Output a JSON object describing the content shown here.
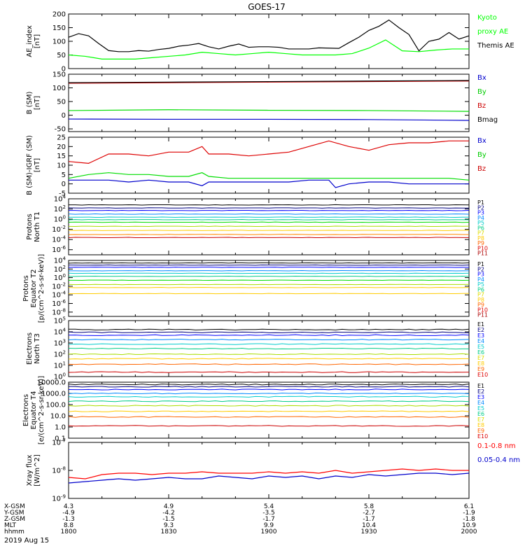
{
  "title": "GOES-17",
  "date": "2019 Aug 15",
  "chart_data": [
    {
      "type": "line",
      "ylabel": "AE_index [nT]",
      "ylim": [
        0,
        200
      ],
      "yticks": [
        "200",
        "150",
        "100",
        "50",
        "0"
      ],
      "series": [
        {
          "name": "Kyoto proxy AE",
          "color": "#00ff00",
          "x": [
            0,
            5,
            10,
            15,
            20,
            25,
            30,
            35,
            40,
            45,
            50,
            55,
            60,
            65,
            70,
            75,
            80,
            85,
            90,
            95,
            100,
            105,
            110,
            115,
            120
          ],
          "values": [
            50,
            45,
            35,
            35,
            35,
            40,
            45,
            50,
            60,
            55,
            50,
            55,
            60,
            55,
            50,
            50,
            50,
            55,
            75,
            105,
            65,
            62,
            68,
            72,
            72
          ]
        },
        {
          "name": "Themis AE",
          "color": "#000000",
          "x": [
            0,
            3,
            6,
            9,
            12,
            15,
            18,
            21,
            24,
            27,
            30,
            33,
            36,
            39,
            42,
            45,
            48,
            51,
            54,
            57,
            60,
            63,
            66,
            69,
            72,
            75,
            78,
            81,
            84,
            87,
            90,
            93,
            96,
            99,
            102,
            105,
            108,
            111,
            114,
            117,
            120
          ],
          "values": [
            115,
            128,
            120,
            92,
            66,
            62,
            62,
            66,
            64,
            70,
            74,
            82,
            86,
            92,
            80,
            72,
            82,
            90,
            78,
            80,
            80,
            78,
            72,
            72,
            72,
            76,
            75,
            74,
            95,
            115,
            140,
            155,
            178,
            150,
            125,
            65,
            100,
            108,
            132,
            108,
            120
          ]
        }
      ],
      "legend": [
        {
          "label": "Kyoto",
          "color": "#00ff00"
        },
        {
          "label": "proxy AE",
          "color": "#00ff00"
        },
        {
          "label": "Themis AE",
          "color": "#000000"
        }
      ]
    },
    {
      "type": "line",
      "ylabel": "B (SM) [nT]",
      "ylim": [
        -60,
        150
      ],
      "yticks": [
        "150",
        "100",
        "50",
        "0",
        "-50"
      ],
      "series": [
        {
          "name": "Bx",
          "color": "#0000cc",
          "x": [
            0,
            30,
            60,
            90,
            120
          ],
          "values": [
            -14,
            -15,
            -15,
            -16,
            -19
          ]
        },
        {
          "name": "By",
          "color": "#00dd00",
          "x": [
            0,
            30,
            60,
            90,
            120
          ],
          "values": [
            17,
            20,
            18,
            17,
            14
          ]
        },
        {
          "name": "Bz",
          "color": "#cc0000",
          "x": [
            0,
            30,
            60,
            90,
            120
          ],
          "values": [
            117,
            119,
            121,
            123,
            125
          ]
        },
        {
          "name": "Bmag",
          "color": "#000000",
          "x": [
            0,
            30,
            60,
            90,
            120
          ],
          "values": [
            119,
            121,
            123,
            125,
            127
          ]
        }
      ],
      "legend": [
        {
          "label": "Bx",
          "color": "#0000cc"
        },
        {
          "label": "By",
          "color": "#00cc00"
        },
        {
          "label": "Bz",
          "color": "#cc0000"
        },
        {
          "label": "Bmag",
          "color": "#000000"
        }
      ]
    },
    {
      "type": "line",
      "ylabel": "B (SM)-IGRF (SM) [nT]",
      "ylim": [
        -5,
        25
      ],
      "yticks": [
        "25",
        "20",
        "15",
        "10",
        "5",
        "0",
        "-5"
      ],
      "series": [
        {
          "name": "Bx",
          "color": "#0000cc",
          "x": [
            0,
            6,
            12,
            18,
            24,
            30,
            36,
            40,
            42,
            48,
            54,
            60,
            66,
            72,
            78,
            80,
            84,
            90,
            96,
            102,
            108,
            114,
            120
          ],
          "values": [
            2,
            2,
            2,
            1,
            2,
            1,
            1,
            -1,
            1,
            1,
            1,
            1,
            1,
            2,
            2,
            -2,
            0,
            1,
            1,
            0,
            0,
            0,
            0
          ]
        },
        {
          "name": "By",
          "color": "#00dd00",
          "x": [
            0,
            6,
            12,
            18,
            24,
            30,
            36,
            40,
            42,
            48,
            54,
            60,
            66,
            72,
            78,
            84,
            90,
            96,
            102,
            108,
            114,
            120
          ],
          "values": [
            3,
            5,
            6,
            5,
            5,
            4,
            4,
            6,
            4,
            3,
            3,
            3,
            3,
            3,
            3,
            3,
            3,
            3,
            3,
            3,
            3,
            2
          ]
        },
        {
          "name": "Bz",
          "color": "#dd0000",
          "x": [
            0,
            6,
            12,
            18,
            24,
            30,
            36,
            40,
            42,
            48,
            54,
            60,
            66,
            72,
            78,
            84,
            90,
            96,
            102,
            108,
            114,
            120
          ],
          "values": [
            12,
            11,
            16,
            16,
            15,
            17,
            17,
            20,
            16,
            16,
            15,
            16,
            17,
            20,
            23,
            20,
            18,
            21,
            22,
            22,
            23,
            23
          ]
        }
      ],
      "legend": [
        {
          "label": "Bx",
          "color": "#0000cc"
        },
        {
          "label": "By",
          "color": "#00cc00"
        },
        {
          "label": "Bz",
          "color": "#cc0000"
        }
      ]
    },
    {
      "type": "line",
      "ylabel": "Protons North T1",
      "log": true,
      "ylim": [
        -7,
        4
      ],
      "yticks": [
        "10^4",
        "10^2",
        "10^0",
        "10^-2",
        "10^-4",
        "10^-6"
      ],
      "series_log10": [
        2.8,
        2.2,
        1.7,
        1.0,
        0.4,
        -0.1,
        -0.6,
        -1.4,
        -2.2,
        -3.0,
        -3.6
      ],
      "colors": [
        "#000000",
        "#000080",
        "#0000ff",
        "#0088ff",
        "#00cccc",
        "#00cc88",
        "#00dd00",
        "#aadd00",
        "#ffcc00",
        "#ff8800",
        "#cc0000"
      ],
      "legend": [
        {
          "label": "P1",
          "color": "#000000"
        },
        {
          "label": "P2",
          "color": "#000080"
        },
        {
          "label": "P3",
          "color": "#0000ff"
        },
        {
          "label": "P4",
          "color": "#0088ff"
        },
        {
          "label": "P5",
          "color": "#00cccc"
        },
        {
          "label": "P6",
          "color": "#00cc88"
        },
        {
          "label": "P7",
          "color": "#dddd00"
        },
        {
          "label": "P8",
          "color": "#ffcc00"
        },
        {
          "label": "P9",
          "color": "#ff6600"
        },
        {
          "label": "P10",
          "color": "#dd0000"
        },
        {
          "label": "P11",
          "color": "#aa0000"
        }
      ]
    },
    {
      "type": "line",
      "ylabel": "Protons Equator T2 [p/(cm^2-s-sr-keV)]",
      "log": true,
      "ylim": [
        -9,
        4
      ],
      "yticks": [
        "10^4",
        "10^2",
        "10^0",
        "10^-2",
        "10^-4",
        "10^-6",
        "10^-8"
      ],
      "series_log10": [
        3.4,
        2.9,
        2.4,
        1.6,
        1.0,
        0.3,
        -0.6,
        -1.6,
        -2.3,
        -3.7
      ],
      "colors": [
        "#000000",
        "#000080",
        "#0000ff",
        "#0088ff",
        "#00cccc",
        "#00cc88",
        "#00dd00",
        "#aadd00",
        "#ffcc00",
        "#ffcc00"
      ],
      "legend": [
        {
          "label": "P1",
          "color": "#000000"
        },
        {
          "label": "P2",
          "color": "#000080"
        },
        {
          "label": "P3",
          "color": "#0000ff"
        },
        {
          "label": "P4",
          "color": "#0088ff"
        },
        {
          "label": "P5",
          "color": "#00cccc"
        },
        {
          "label": "P6",
          "color": "#00cc88"
        },
        {
          "label": "P7",
          "color": "#dddd00"
        },
        {
          "label": "P8",
          "color": "#ffcc00"
        },
        {
          "label": "P9",
          "color": "#ff6600"
        },
        {
          "label": "P10",
          "color": "#dd0000"
        },
        {
          "label": "P11",
          "color": "#aa0000"
        }
      ]
    },
    {
      "type": "line",
      "ylabel": "Electrons North T3",
      "log": true,
      "ylim": [
        0,
        5
      ],
      "yticks": [
        "10^5",
        "10^4",
        "10^3",
        "10^2",
        "10^1",
        "10^0"
      ],
      "series_log10": [
        4.2,
        3.95,
        3.7,
        3.3,
        2.9,
        2.5,
        2.0,
        1.6,
        1.1,
        0.4
      ],
      "colors": [
        "#000000",
        "#000080",
        "#0000ff",
        "#0088ff",
        "#00cccc",
        "#00cc88",
        "#aadd00",
        "#ffcc00",
        "#ff6600",
        "#cc0000"
      ],
      "legend": [
        {
          "label": "E1",
          "color": "#000000"
        },
        {
          "label": "E2",
          "color": "#000080"
        },
        {
          "label": "E3",
          "color": "#0000ff"
        },
        {
          "label": "E4",
          "color": "#0088ff"
        },
        {
          "label": "E5",
          "color": "#00cccc"
        },
        {
          "label": "E6",
          "color": "#00cc88"
        },
        {
          "label": "E7",
          "color": "#dddd00"
        },
        {
          "label": "E8",
          "color": "#ffcc00"
        },
        {
          "label": "E9",
          "color": "#ff6600"
        },
        {
          "label": "E10",
          "color": "#dd0000"
        }
      ]
    },
    {
      "type": "line",
      "ylabel": "Electrons Equator T4 [e/(cm^2-s-sr-keV)]",
      "log": true,
      "ylim": [
        -1,
        4
      ],
      "yticks": [
        "10000.0",
        "1000.0",
        "100.0",
        "10.0",
        "1.0",
        "0.1"
      ],
      "series_log10": [
        3.8,
        3.6,
        3.35,
        3.0,
        2.7,
        2.3,
        1.9,
        1.4,
        0.9,
        0.1
      ],
      "colors": [
        "#000000",
        "#000080",
        "#0000ff",
        "#0088ff",
        "#00cccc",
        "#00cc88",
        "#aadd00",
        "#ffcc00",
        "#ff6600",
        "#cc0000"
      ],
      "legend": [
        {
          "label": "E1",
          "color": "#000000"
        },
        {
          "label": "E2",
          "color": "#000080"
        },
        {
          "label": "E3",
          "color": "#0000ff"
        },
        {
          "label": "E4",
          "color": "#0088ff"
        },
        {
          "label": "E5",
          "color": "#00cccc"
        },
        {
          "label": "E6",
          "color": "#00cc88"
        },
        {
          "label": "E7",
          "color": "#dddd00"
        },
        {
          "label": "E8",
          "color": "#ffcc00"
        },
        {
          "label": "E9",
          "color": "#ff6600"
        },
        {
          "label": "E10",
          "color": "#dd0000"
        }
      ]
    },
    {
      "type": "line",
      "ylabel": "Xray flux [W/m^2]",
      "log": true,
      "ylim": [
        -9,
        -7
      ],
      "yticks": [
        "10^-7",
        "10^-8",
        "10^-9"
      ],
      "series": [
        {
          "name": "0.1-0.8 nm",
          "color": "#ff0000",
          "x": [
            0,
            5,
            10,
            15,
            20,
            25,
            30,
            35,
            40,
            45,
            50,
            55,
            60,
            65,
            70,
            75,
            80,
            85,
            90,
            95,
            100,
            105,
            110,
            115,
            120
          ],
          "values": [
            -8.25,
            -8.3,
            -8.15,
            -8.1,
            -8.1,
            -8.15,
            -8.1,
            -8.1,
            -8.05,
            -8.1,
            -8.1,
            -8.1,
            -8.05,
            -8.1,
            -8.05,
            -8.1,
            -8.0,
            -8.1,
            -8.05,
            -8.0,
            -7.95,
            -8.0,
            -7.95,
            -8.0,
            -8.0
          ]
        },
        {
          "name": "0.05-0.4 nm",
          "color": "#0000cc",
          "x": [
            0,
            5,
            10,
            15,
            20,
            25,
            30,
            35,
            40,
            45,
            50,
            55,
            60,
            65,
            70,
            75,
            80,
            85,
            90,
            95,
            100,
            105,
            110,
            115,
            120
          ],
          "values": [
            -8.45,
            -8.4,
            -8.35,
            -8.3,
            -8.35,
            -8.3,
            -8.25,
            -8.3,
            -8.3,
            -8.2,
            -8.25,
            -8.3,
            -8.2,
            -8.25,
            -8.2,
            -8.3,
            -8.2,
            -8.25,
            -8.15,
            -8.2,
            -8.15,
            -8.1,
            -8.1,
            -8.15,
            -8.1
          ]
        }
      ],
      "legend": [
        {
          "label": "0.1-0.8 nm",
          "color": "#ff0000"
        },
        {
          "label": "0.05-0.4 nm",
          "color": "#0000cc"
        }
      ]
    }
  ],
  "xaxis": {
    "row_labels": [
      "X-GSM",
      "Y-GSM",
      "Z-GSM",
      "MLT",
      "hhmm"
    ],
    "columns": [
      {
        "t": 0,
        "values": [
          "4.3",
          "-4.9",
          "-1.3",
          "8.8",
          "1800"
        ]
      },
      {
        "t": 30,
        "values": [
          "4.9",
          "-4.2",
          "-1.5",
          "9.3",
          "1830"
        ]
      },
      {
        "t": 60,
        "values": [
          "5.4",
          "-3.5",
          "-1.7",
          "9.9",
          "1900"
        ]
      },
      {
        "t": 90,
        "values": [
          "5.8",
          "-2.7",
          "-1.7",
          "10.4",
          "1930"
        ]
      },
      {
        "t": 120,
        "values": [
          "6.1",
          "-1.9",
          "-1.8",
          "10.9",
          "2000"
        ]
      }
    ]
  }
}
